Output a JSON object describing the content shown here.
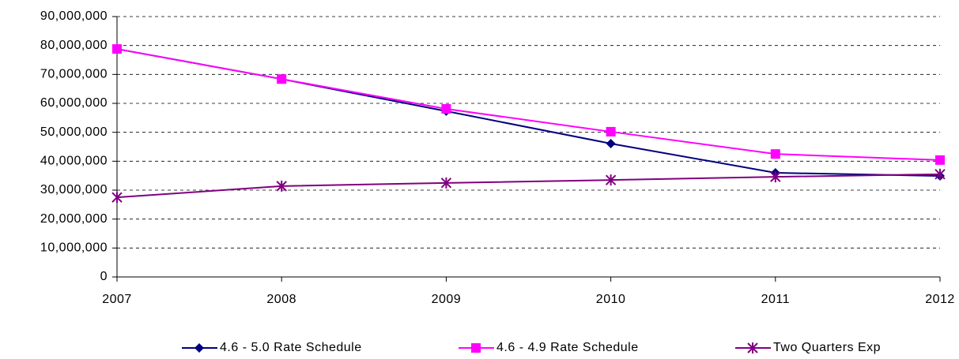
{
  "chart_data": {
    "type": "line",
    "x": [
      2007,
      2008,
      2009,
      2010,
      2011,
      2012
    ],
    "xlim": [
      2007,
      2012
    ],
    "xticks": [
      2007,
      2008,
      2009,
      2010,
      2011,
      2012
    ],
    "ylim": [
      0,
      90000000
    ],
    "yticks": [
      {
        "value": 0,
        "label": "0"
      },
      {
        "value": 10000000,
        "label": "10,000,000"
      },
      {
        "value": 20000000,
        "label": "20,000,000"
      },
      {
        "value": 30000000,
        "label": "30,000,000"
      },
      {
        "value": 40000000,
        "label": "40,000,000"
      },
      {
        "value": 50000000,
        "label": "50,000,000"
      },
      {
        "value": 60000000,
        "label": "60,000,000"
      },
      {
        "value": 70000000,
        "label": "70,000,000"
      },
      {
        "value": 80000000,
        "label": "80,000,000"
      },
      {
        "value": 90000000,
        "label": "90,000,000"
      }
    ],
    "grid": true,
    "legend": "bottom",
    "series": [
      {
        "name": "4.6 - 5.0 Rate Schedule",
        "color": "#000080",
        "marker": "diamond",
        "values": [
          78800000,
          68400000,
          57300000,
          46100000,
          36000000,
          34900000
        ]
      },
      {
        "name": "4.6 - 4.9 Rate Schedule",
        "color": "#ff00ff",
        "marker": "square",
        "values": [
          78800000,
          68400000,
          58100000,
          50200000,
          42500000,
          40400000
        ]
      },
      {
        "name": "Two Quarters Exp",
        "color": "#800080",
        "marker": "asterisk",
        "values": [
          27500000,
          31400000,
          32500000,
          33500000,
          34600000,
          35500000
        ]
      }
    ]
  }
}
